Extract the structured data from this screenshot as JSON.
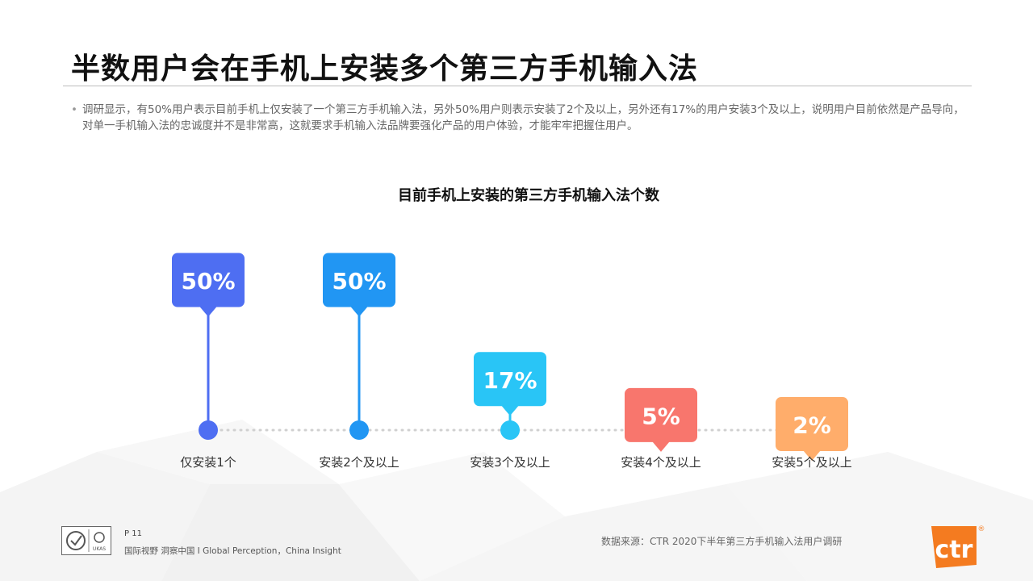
{
  "page": {
    "title": "半数用户会在手机上安装多个第三方手机输入法",
    "summary_bullet": "•",
    "summary": "调研显示，有50%用户表示目前手机上仅安装了一个第三方手机输入法，另外50%用户则表示安装了2个及以上，另外还有17%的用户安装3个及以上，说明用户目前依然是产品导向，对单一手机输入法的忠诚度并不是非常高，这就要求手机输入法品牌要强化产品的用户体验，才能牢牢把握住用户。"
  },
  "chart_data": {
    "type": "bar",
    "title": "目前手机上安装的第三方手机输入法个数",
    "categories": [
      "仅安装1个",
      "安装2个及以上",
      "安装3个及以上",
      "安装4个及以上",
      "安装5个及以上"
    ],
    "values": [
      50,
      50,
      17,
      5,
      2
    ],
    "value_labels": [
      "50%",
      "50%",
      "17%",
      "5%",
      "2%"
    ],
    "colors": [
      "#4e6ef2",
      "#2196f3",
      "#29c5f6",
      "#f8766d",
      "#ffad6b"
    ],
    "unit": "%",
    "ylim": [
      0,
      50
    ],
    "grid": false,
    "legend": "none"
  },
  "footer": {
    "page_number": "P 11",
    "tagline": "国际视野 洞察中国 I Global Perception，China Insight",
    "source": "数据来源：CTR 2020下半年第三方手机输入法用户调研",
    "brand": "ctr",
    "brand_mark": "®",
    "cert_text": "UKAS"
  }
}
